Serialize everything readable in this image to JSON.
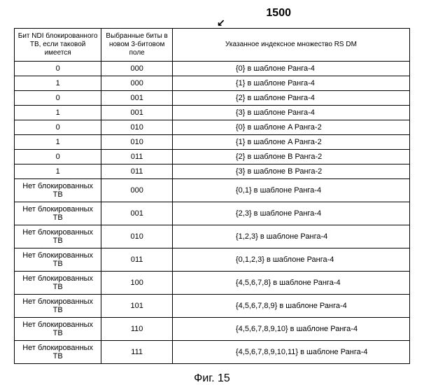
{
  "figure_label": "1500",
  "arrow_symbol": "↙",
  "caption": "Фиг. 15",
  "headers": {
    "col1": "Бит NDI блокированного ТВ, если таковой имеется",
    "col2": "Выбранные биты в новом 3-битовом поле",
    "col3": "Указанное индексное множество RS DM"
  },
  "rows": [
    {
      "c1": "0",
      "c2": "000",
      "c3": "{0}  в шаблоне Ранга-4"
    },
    {
      "c1": "1",
      "c2": "000",
      "c3": "{1}  в шаблоне Ранга-4"
    },
    {
      "c1": "0",
      "c2": "001",
      "c3": "{2}  в шаблоне Ранга-4"
    },
    {
      "c1": "1",
      "c2": "001",
      "c3": "{3}  в шаблоне Ранга-4"
    },
    {
      "c1": "0",
      "c2": "010",
      "c3": "{0}  в шаблоне A Ранга-2"
    },
    {
      "c1": "1",
      "c2": "010",
      "c3": "{1}  в шаблоне A Ранга-2"
    },
    {
      "c1": "0",
      "c2": "011",
      "c3": "{2}  в шаблоне B Ранга-2"
    },
    {
      "c1": "1",
      "c2": "011",
      "c3": "{3}  в шаблоне B Ранга-2"
    },
    {
      "c1": "Нет блокированных ТВ",
      "c2": "000",
      "c3": "{0,1}  в шаблоне Ранга-4"
    },
    {
      "c1": "Нет блокированных ТВ",
      "c2": "001",
      "c3": "{2,3}  в шаблоне Ранга-4"
    },
    {
      "c1": "Нет блокированных ТВ",
      "c2": "010",
      "c3": "{1,2,3}  в шаблоне Ранга-4"
    },
    {
      "c1": "Нет блокированных ТВ",
      "c2": "011",
      "c3": "{0,1,2,3}  в шаблоне Ранга-4"
    },
    {
      "c1": "Нет блокированных ТВ",
      "c2": "100",
      "c3": "{4,5,6,7,8}  в шаблоне Ранга-4"
    },
    {
      "c1": "Нет блокированных ТВ",
      "c2": "101",
      "c3": "{4,5,6,7,8,9}  в шаблоне Ранга-4"
    },
    {
      "c1": "Нет блокированных ТВ",
      "c2": "110",
      "c3": "{4,5,6,7,8,9,10}  в шаблоне Ранга-4"
    },
    {
      "c1": "Нет блокированных ТВ",
      "c2": "111",
      "c3": "{4,5,6,7,8,9,10,11}  в шаблоне Ранга-4"
    }
  ]
}
